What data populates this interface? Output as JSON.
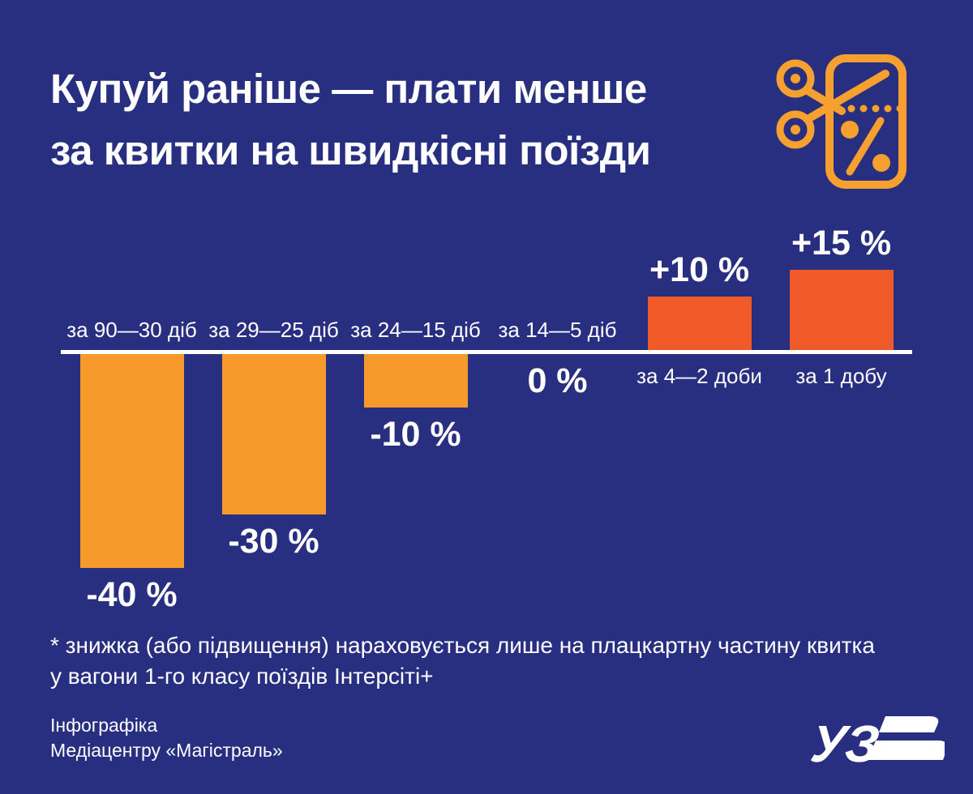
{
  "colors": {
    "background": "#282F80",
    "bar_negative": "#F69A2C",
    "bar_positive": "#F05A28",
    "baseline": "#FFFFFF",
    "accent_icon": "#F6A02F",
    "text": "#FFFFFF"
  },
  "header": {
    "title_line1": "Купуй раніше — плати менше",
    "title_line2": "за квитки на швидкісні поїзди",
    "icon": "scissors-cutting-ticket-percent-icon"
  },
  "chart_data": {
    "type": "bar",
    "categories": [
      "за 90—30 діб",
      "за 29—25 діб",
      "за 24—15 діб",
      "за 14—5 діб",
      "за 4—2 доби",
      "за 1 добу"
    ],
    "values": [
      -40,
      -30,
      -10,
      0,
      10,
      15
    ],
    "value_labels": [
      "-40 %",
      "-30 %",
      "-10 %",
      "0 %",
      "+10 %",
      "+15 %"
    ],
    "title": "Купуй раніше — плати менше за квитки на швидкісні поїзди",
    "xlabel": "",
    "ylabel": "",
    "ylim": [
      -45,
      20
    ],
    "grid": false,
    "legend": false,
    "baseline_value": 0,
    "colors": {
      "negative": "#F69A2C",
      "positive": "#F05A28"
    }
  },
  "footnote": {
    "line1": "* знижка (або підвищення) нараховується лише на плацкартну частину квитка",
    "line2": "у вагони 1-го класу поїздів Інтерсіті+"
  },
  "credits": {
    "line1": "Інфографіка",
    "line2": "Медіацентру «Магістраль»"
  },
  "logo": {
    "name": "uz-railways-logo",
    "text": "УЗ"
  }
}
